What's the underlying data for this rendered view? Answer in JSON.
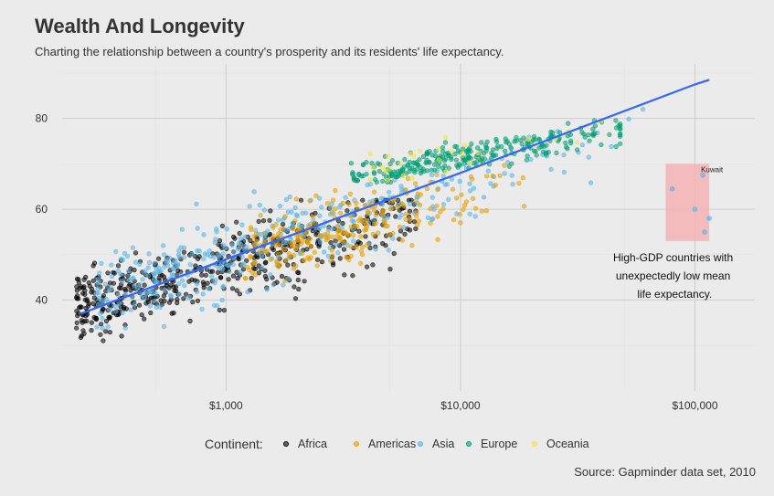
{
  "chart_data": {
    "type": "scatter",
    "title": "Wealth And Longevity",
    "subtitle": "Charting the relationship between a country's prosperity and its residents' life expectancy.",
    "xlabel": "",
    "ylabel": "",
    "x_scale": "log10",
    "xlim": [
      200,
      180000
    ],
    "ylim": [
      20,
      92
    ],
    "x_ticks": [
      1000,
      10000,
      100000
    ],
    "x_tick_labels": [
      "$1,000",
      "$10,000",
      "$100,000"
    ],
    "y_ticks": [
      40,
      60,
      80
    ],
    "y_tick_labels": [
      "40",
      "60",
      "80"
    ],
    "grid": true,
    "legend": {
      "title": "Continent:",
      "position": "bottom",
      "entries": [
        "Africa",
        "Americas",
        "Asia",
        "Europe",
        "Oceania"
      ]
    },
    "series": [
      {
        "name": "Africa",
        "color": "#000000",
        "x_range": [
          230,
          6000
        ],
        "y_range": [
          24,
          62
        ]
      },
      {
        "name": "Americas",
        "color": "#E69F00",
        "x_range": [
          1200,
          20000
        ],
        "y_range": [
          42,
          80
        ]
      },
      {
        "name": "Asia",
        "color": "#56B4E9",
        "x_range": [
          300,
          110000
        ],
        "y_range": [
          28,
          82
        ]
      },
      {
        "name": "Europe",
        "color": "#009E73",
        "x_range": [
          3000,
          48000
        ],
        "y_range": [
          66,
          82
        ]
      },
      {
        "name": "Oceania",
        "color": "#F0E442",
        "x_range": [
          4000,
          40000
        ],
        "y_range": [
          64,
          82
        ]
      }
    ],
    "trend_line": {
      "color": "#3366FF",
      "points": [
        [
          240,
          37
        ],
        [
          1000,
          49
        ],
        [
          10000,
          68
        ],
        [
          100000,
          87.5
        ],
        [
          115000,
          88.5
        ]
      ]
    },
    "highlight": {
      "x_range": [
        75000,
        115000
      ],
      "y_range": [
        53,
        70
      ],
      "color": "#f4b3b3",
      "points": [
        [
          80000,
          64.5
        ],
        [
          100000,
          60
        ],
        [
          108000,
          67.5
        ],
        [
          115000,
          58
        ],
        [
          110000,
          55
        ]
      ]
    },
    "annotations": {
      "kuwait": "Kuwait",
      "note_lines": [
        "High-GDP countries with",
        "unexpectedly low mean",
        "life expectancy."
      ]
    },
    "caption": "Source:  Gapminder data set, 2010"
  }
}
